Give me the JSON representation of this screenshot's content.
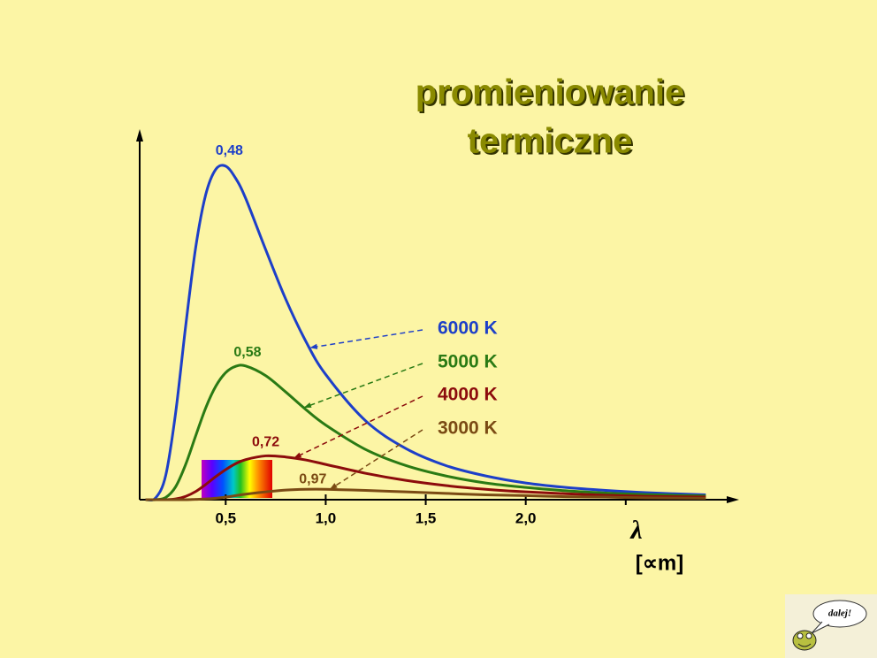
{
  "chart_data": {
    "type": "line",
    "title": [
      "promieniowanie",
      "termiczne"
    ],
    "x_label": "λ",
    "x_unit": "[∝m]",
    "xlim": [
      0.07,
      3.04
    ],
    "ylim": [
      0,
      100
    ],
    "xticks": [
      {
        "value": 0.5,
        "label": "0,5"
      },
      {
        "value": 1.0,
        "label": "1,0"
      },
      {
        "value": 1.5,
        "label": "1,5"
      },
      {
        "value": 2.0,
        "label": "2,0"
      },
      {
        "value": 2.5,
        "label": null
      }
    ],
    "x": [
      0.1,
      0.15,
      0.2,
      0.25,
      0.3,
      0.35,
      0.4,
      0.45,
      0.5,
      0.55,
      0.6,
      0.7,
      0.8,
      0.9,
      1.0,
      1.2,
      1.4,
      1.6,
      1.8,
      2.0,
      2.2,
      2.4,
      2.6,
      2.9
    ],
    "series": [
      {
        "name": "6000 K",
        "color": "#1d3fc8",
        "values": [
          0,
          0.5,
          6.5,
          23.5,
          46.8,
          67.9,
          82.1,
          88.9,
          89.8,
          86.5,
          81.1,
          67.3,
          54.0,
          42.7,
          33.7,
          21.2,
          13.8,
          9.2,
          6.4,
          4.5,
          3.3,
          2.5,
          1.9,
          1.3
        ]
      },
      {
        "name": "5000 K",
        "color": "#2a7a14",
        "values": [
          0,
          0,
          0.6,
          3.5,
          9.5,
          17.2,
          24.7,
          30.5,
          34.2,
          35.9,
          36.0,
          33.4,
          29.0,
          24.3,
          20.1,
          13.5,
          9.2,
          6.4,
          4.5,
          3.3,
          2.4,
          1.8,
          1.4,
          1.0
        ]
      },
      {
        "name": "4000 K",
        "color": "#8c0c0c",
        "values": [
          0,
          0,
          0,
          0.2,
          0.9,
          2.2,
          4.1,
          6.2,
          8.1,
          9.7,
          10.8,
          11.8,
          11.5,
          10.7,
          9.5,
          7.1,
          5.2,
          3.8,
          2.8,
          2.1,
          1.6,
          1.2,
          0.9,
          0.7
        ]
      },
      {
        "name": "3000 K",
        "color": "#7a4a14",
        "values": [
          0,
          0,
          0,
          0,
          0,
          0.1,
          0.2,
          0.4,
          0.7,
          1.1,
          1.5,
          2.1,
          2.6,
          2.8,
          2.8,
          2.5,
          2.1,
          1.7,
          1.3,
          1.1,
          0.8,
          0.7,
          0.5,
          0.4
        ]
      }
    ],
    "annotations": [
      "0,48",
      "0,58",
      "0,72",
      "0,97"
    ]
  },
  "nav_button": "dalej!"
}
